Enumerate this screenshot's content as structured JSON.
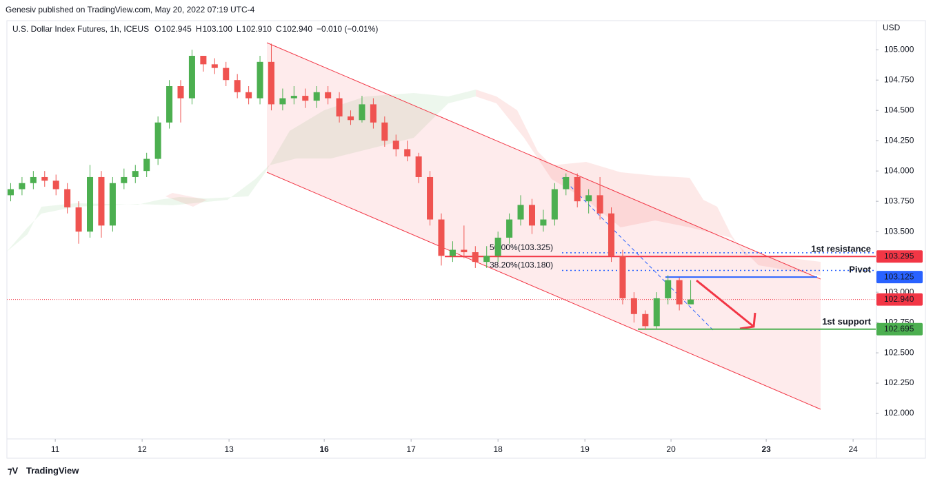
{
  "header": {
    "published": "Genesiv published on TradingView.com, May 20, 2022 07:19 UTC-4",
    "symbol": "U.S. Dollar Index Futures, 1h, ICEUS",
    "ohlc": [
      {
        "key": "O",
        "value": "102.945"
      },
      {
        "key": "H",
        "value": "103.100"
      },
      {
        "key": "L",
        "value": "102.910"
      },
      {
        "key": "C",
        "value": "102.940"
      }
    ],
    "change": "−0.010 (−0.01%)",
    "footer": "TradingView"
  },
  "chart_data": {
    "type": "candlestick",
    "y_axis_label": "USD",
    "x": [
      1,
      4,
      7,
      10,
      13,
      16,
      19,
      22,
      25,
      28,
      31,
      34,
      37,
      40,
      43,
      46,
      49,
      52,
      55,
      58,
      61,
      64,
      67,
      70,
      73,
      76,
      79,
      82,
      85,
      88,
      91,
      94,
      97,
      100,
      103,
      106,
      109,
      112,
      115,
      118,
      121,
      124,
      127,
      130,
      133,
      136,
      139,
      142,
      145,
      148,
      151,
      154,
      157,
      160,
      163,
      166,
      169,
      172,
      175,
      178,
      181
    ],
    "open": [
      103.8,
      103.85,
      103.9,
      103.95,
      103.92,
      103.85,
      103.7,
      103.5,
      103.95,
      103.55,
      103.9,
      103.95,
      104.0,
      104.1,
      104.4,
      104.7,
      104.6,
      104.95,
      104.88,
      104.85,
      104.75,
      104.65,
      104.6,
      104.9,
      104.55,
      104.6,
      104.62,
      104.58,
      104.65,
      104.6,
      104.45,
      104.42,
      104.55,
      104.4,
      104.25,
      104.18,
      104.12,
      103.95,
      103.6,
      103.3,
      103.35,
      103.33,
      103.25,
      103.3,
      103.45,
      103.6,
      103.72,
      103.55,
      103.6,
      103.85,
      103.95,
      103.75,
      103.8,
      103.65,
      103.3,
      102.95,
      102.82,
      102.72,
      102.95,
      103.1,
      102.9
    ],
    "high": [
      103.9,
      103.95,
      104.0,
      104.0,
      103.97,
      103.9,
      103.75,
      104.05,
      104.0,
      103.95,
      104.02,
      104.05,
      104.15,
      104.45,
      104.75,
      104.75,
      105.0,
      104.95,
      104.93,
      104.9,
      104.8,
      104.7,
      104.95,
      105.05,
      104.68,
      104.7,
      104.68,
      104.7,
      104.7,
      104.65,
      104.5,
      104.62,
      104.6,
      104.45,
      104.3,
      104.25,
      104.15,
      104.0,
      103.65,
      103.42,
      103.55,
      103.38,
      103.38,
      103.5,
      103.65,
      103.8,
      103.77,
      103.68,
      103.9,
      103.98,
      103.98,
      103.85,
      103.95,
      103.7,
      103.35,
      103.0,
      102.85,
      103.0,
      103.14,
      103.12,
      103.1
    ],
    "low": [
      103.75,
      103.8,
      103.85,
      103.87,
      103.8,
      103.65,
      103.4,
      103.45,
      103.45,
      103.5,
      103.85,
      103.9,
      103.95,
      104.05,
      104.35,
      104.4,
      104.55,
      104.82,
      104.8,
      104.7,
      104.6,
      104.55,
      104.55,
      104.5,
      104.5,
      104.55,
      104.52,
      104.52,
      104.55,
      104.4,
      104.38,
      104.4,
      104.35,
      104.2,
      104.12,
      104.08,
      103.9,
      103.55,
      103.22,
      103.25,
      103.28,
      103.2,
      103.2,
      103.25,
      103.4,
      103.55,
      103.48,
      103.5,
      103.55,
      103.8,
      103.7,
      103.65,
      103.6,
      103.25,
      102.9,
      102.75,
      102.69,
      102.7,
      102.9,
      102.85,
      102.91
    ],
    "close": [
      103.85,
      103.9,
      103.95,
      103.92,
      103.85,
      103.7,
      103.5,
      103.95,
      103.55,
      103.9,
      103.95,
      104.0,
      104.1,
      104.4,
      104.7,
      104.6,
      104.95,
      104.88,
      104.85,
      104.75,
      104.65,
      104.6,
      104.9,
      104.55,
      104.6,
      104.62,
      104.58,
      104.65,
      104.6,
      104.45,
      104.42,
      104.55,
      104.4,
      104.25,
      104.18,
      104.12,
      103.95,
      103.6,
      103.3,
      103.35,
      103.33,
      103.25,
      103.3,
      103.45,
      103.6,
      103.72,
      103.55,
      103.6,
      103.85,
      103.95,
      103.75,
      103.8,
      103.65,
      103.3,
      102.95,
      102.82,
      102.72,
      102.95,
      103.1,
      102.9,
      102.94
    ],
    "up_color": "#4caf50",
    "down_color": "#ef5350",
    "xlim": [
      0,
      230
    ],
    "xticks": [
      {
        "value": 12.8,
        "label": "11"
      },
      {
        "value": 35.8,
        "label": "12"
      },
      {
        "value": 58.8,
        "label": "13"
      },
      {
        "value": 84,
        "label": "16"
      },
      {
        "value": 107,
        "label": "17"
      },
      {
        "value": 130,
        "label": "18"
      },
      {
        "value": 153,
        "label": "19"
      },
      {
        "value": 175.8,
        "label": "20"
      },
      {
        "value": 201,
        "label": "23"
      },
      {
        "value": 224,
        "label": "24"
      }
    ],
    "ylim": [
      101.79,
      105.24
    ],
    "yticks": [
      {
        "value": 105,
        "label": "105.000"
      },
      {
        "value": 104.75,
        "label": "104.750"
      },
      {
        "value": 104.5,
        "label": "104.500"
      },
      {
        "value": 104.25,
        "label": "104.250"
      },
      {
        "value": 104,
        "label": "104.000"
      },
      {
        "value": 103.75,
        "label": "103.750"
      },
      {
        "value": 103.5,
        "label": "103.500"
      },
      {
        "value": 103,
        "label": "103.000"
      },
      {
        "value": 102.75,
        "label": "102.750"
      },
      {
        "value": 102.5,
        "label": "102.500"
      },
      {
        "value": 102.25,
        "label": "102.250"
      },
      {
        "value": 102,
        "label": "102.000"
      }
    ],
    "levels": [
      {
        "name": "1st resistance",
        "value": 103.295,
        "color": "#f23645"
      },
      {
        "name": "Pivot",
        "value": 103.125,
        "color": "#2962ff"
      },
      {
        "name": "1st support",
        "value": 102.695,
        "color": "#4caf50"
      }
    ],
    "fib": [
      {
        "label": "50.00%(103.325)",
        "value": 103.325
      },
      {
        "label": "38.20%(103.180)",
        "value": 103.18
      }
    ],
    "last": {
      "value": 102.94,
      "label": "102.940"
    }
  }
}
